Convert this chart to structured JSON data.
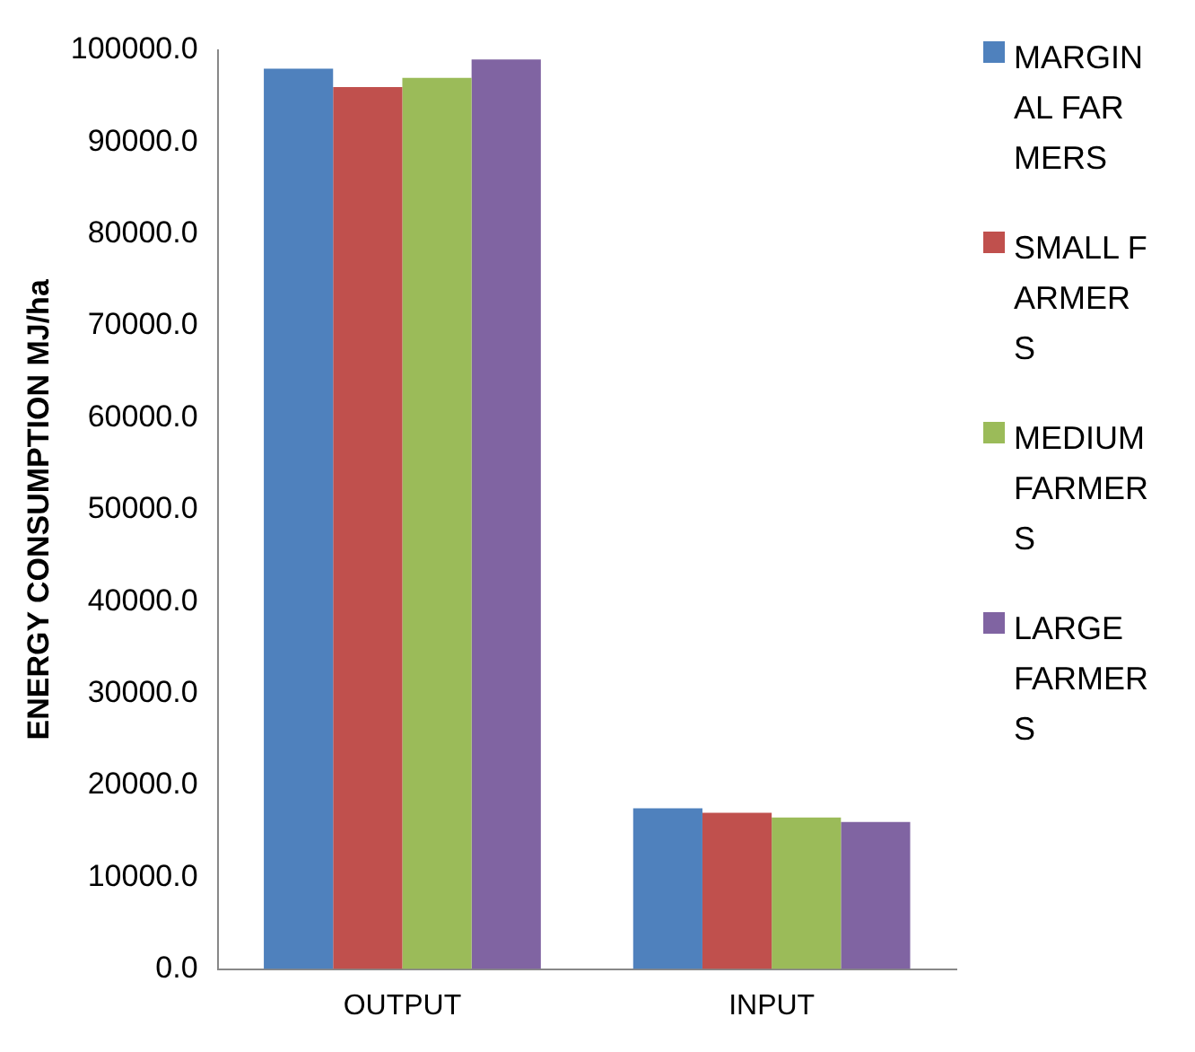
{
  "chart_data": {
    "type": "bar",
    "ylabel": "ENERGY CONSUMPTION MJ/ha",
    "categories": [
      "OUTPUT",
      "INPUT"
    ],
    "series": [
      {
        "name": "MARGINAL FARMERS",
        "color": "#4f81bd",
        "values": [
          98000,
          17500
        ]
      },
      {
        "name": "SMALL FARMERS",
        "color": "#c0504d",
        "values": [
          96000,
          17000
        ]
      },
      {
        "name": "MEDIUM FARMERS",
        "color": "#9bbb59",
        "values": [
          97000,
          16500
        ]
      },
      {
        "name": "LARGE FARMERS",
        "color": "#8064a2",
        "values": [
          99000,
          16000
        ]
      }
    ],
    "ylim": [
      0,
      100000
    ],
    "yticks": [
      {
        "value": 0,
        "label": "0.0"
      },
      {
        "value": 10000,
        "label": "10000.0"
      },
      {
        "value": 20000,
        "label": "20000.0"
      },
      {
        "value": 30000,
        "label": "30000.0"
      },
      {
        "value": 40000,
        "label": "40000.0"
      },
      {
        "value": 50000,
        "label": "50000.0"
      },
      {
        "value": 60000,
        "label": "60000.0"
      },
      {
        "value": 70000,
        "label": "70000.0"
      },
      {
        "value": 80000,
        "label": "80000.0"
      },
      {
        "value": 90000,
        "label": "90000.0"
      },
      {
        "value": 100000,
        "label": "100000.0"
      }
    ],
    "grid": false,
    "legend": "right"
  }
}
